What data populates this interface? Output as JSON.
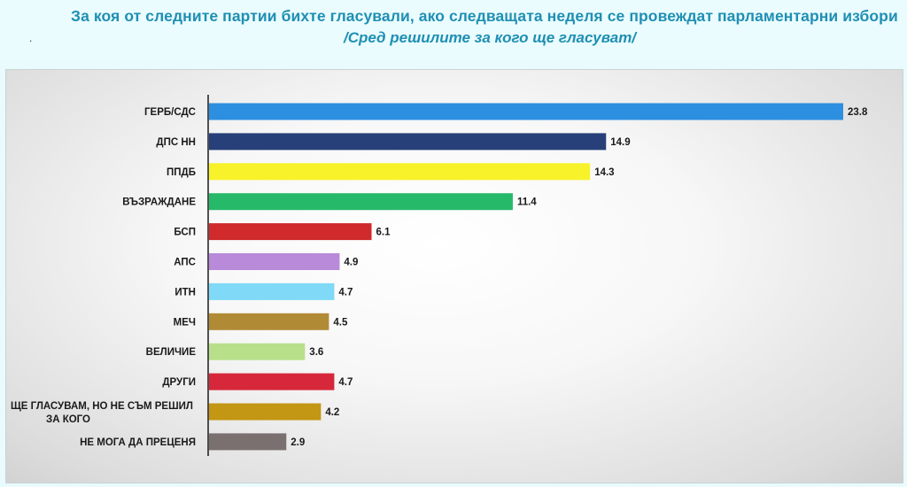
{
  "header": {
    "title": "За коя от следните партии бихте  гласували,  ако следващата неделя се провеждат парламентарни избори",
    "subtitle": "/Сред решилите за кого ще гласуват/",
    "dot": "."
  },
  "chart_data": {
    "type": "bar",
    "orientation": "horizontal",
    "title": "За коя от следните партии бихте  гласували,  ако следващата неделя се провеждат парламентарни избори",
    "subtitle": "/Сред решилите за кого ще гласуват/",
    "xlabel": "",
    "ylabel": "",
    "xlim": [
      0,
      24
    ],
    "grid": false,
    "legend": "none",
    "categories": [
      "ГЕРБ/СДС",
      "ДПС НН",
      "ППДБ",
      "ВЪЗРАЖДАНЕ",
      "БСП",
      "АПС",
      "ИТН",
      "МЕЧ",
      "ВЕЛИЧИЕ",
      "ДРУГИ",
      "ЩЕ ГЛАСУВАМ, НО НЕ СЪМ РЕШИЛ ЗА КОГО",
      "НЕ МОГА ДА ПРЕЦЕНЯ"
    ],
    "category_lines": [
      [
        "ГЕРБ/СДС"
      ],
      [
        "ДПС НН"
      ],
      [
        "ППДБ"
      ],
      [
        "ВЪЗРАЖДАНЕ"
      ],
      [
        "БСП"
      ],
      [
        "АПС"
      ],
      [
        "ИТН"
      ],
      [
        "МЕЧ"
      ],
      [
        "ВЕЛИЧИЕ"
      ],
      [
        "ДРУГИ"
      ],
      [
        "ЩЕ ГЛАСУВАМ, НО НЕ СЪМ РЕШИЛ",
        "ЗА КОГО"
      ],
      [
        "НЕ МОГА ДА ПРЕЦЕНЯ"
      ]
    ],
    "values": [
      23.8,
      14.9,
      14.3,
      11.4,
      6.1,
      4.9,
      4.7,
      4.5,
      3.6,
      4.7,
      4.2,
      2.9
    ],
    "value_labels": [
      "23.8",
      "14.9",
      "14.3",
      "11.4",
      "6.1",
      "4.9",
      "4.7",
      "4.5",
      "3.6",
      "4.7",
      "4.2",
      "2.9"
    ],
    "colors": [
      "#2d8fe0",
      "#27407a",
      "#f7f22a",
      "#27b96a",
      "#d02a2c",
      "#b88ad9",
      "#7fd9f7",
      "#b18a36",
      "#b8e08a",
      "#d6283a",
      "#c39613",
      "#7a7070"
    ]
  }
}
